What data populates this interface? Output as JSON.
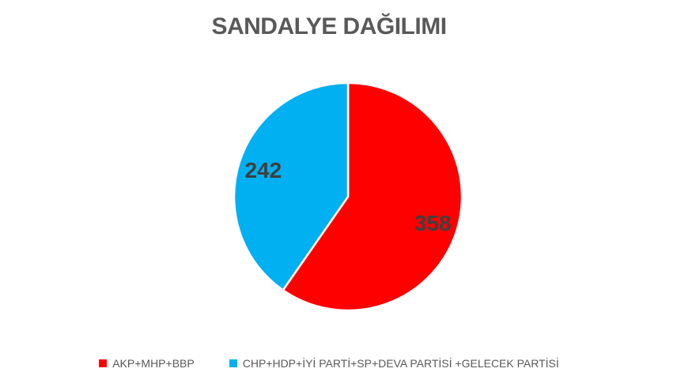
{
  "page": {
    "background_color": "#ffffff"
  },
  "chart_data": {
    "type": "pie",
    "title": "SANDALYE DAĞILIMI",
    "title_color": "#595959",
    "series": [
      {
        "label": "AKP+MHP+BBP",
        "value": 358,
        "color": "#ff0000"
      },
      {
        "label": "CHP+HDP+İYİ PARTİ+SP+DEVA PARTİSİ +GELECEK PARTİSİ",
        "value": 242,
        "color": "#00b0f0"
      }
    ],
    "total": 600,
    "start_angle_deg": 0,
    "direction": "clockwise",
    "slice_border_color": "#ffffff",
    "data_labels_shown": true,
    "data_label_color": "#3f3f3f",
    "legend_position": "bottom",
    "legend_text_color": "#595959"
  }
}
